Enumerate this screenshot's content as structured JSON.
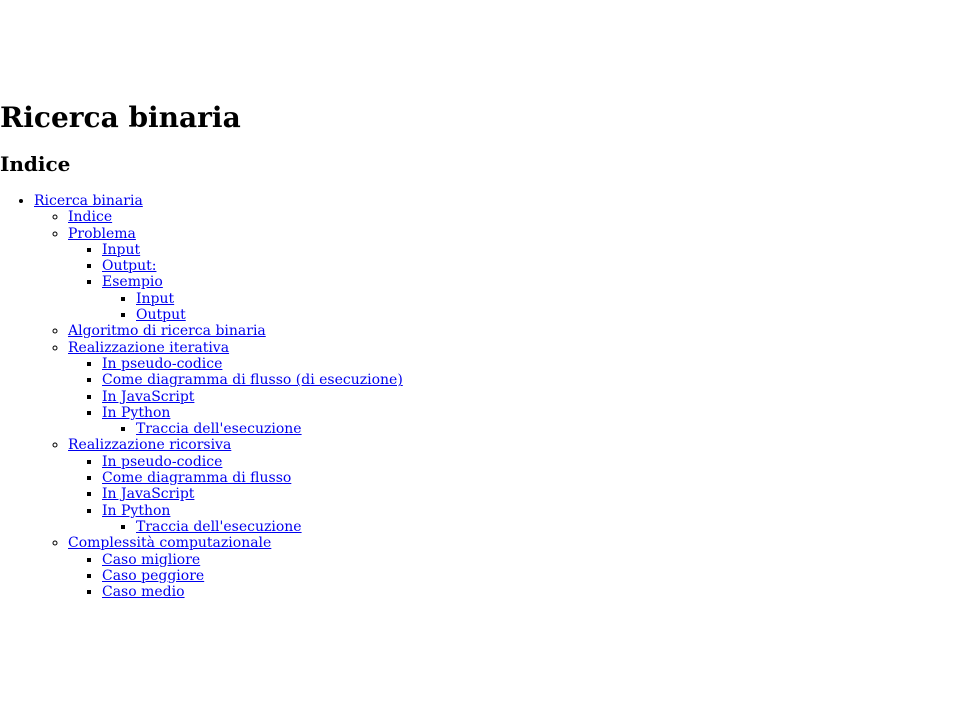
{
  "page": {
    "title": "Ricerca binaria",
    "toc_heading": "Indice"
  },
  "toc": [
    {
      "label": "Ricerca binaria",
      "children": [
        {
          "label": "Indice",
          "children": []
        },
        {
          "label": "Problema",
          "children": [
            {
              "label": "Input",
              "children": []
            },
            {
              "label": "Output:",
              "children": []
            },
            {
              "label": "Esempio",
              "children": [
                {
                  "label": "Input",
                  "children": []
                },
                {
                  "label": "Output",
                  "children": []
                }
              ]
            }
          ]
        },
        {
          "label": "Algoritmo di ricerca binaria",
          "children": []
        },
        {
          "label": "Realizzazione iterativa",
          "children": [
            {
              "label": "In pseudo-codice",
              "children": []
            },
            {
              "label": "Come diagramma di flusso (di esecuzione)",
              "children": []
            },
            {
              "label": "In JavaScript",
              "children": []
            },
            {
              "label": "In Python",
              "children": [
                {
                  "label": "Traccia dell'esecuzione",
                  "children": []
                }
              ]
            }
          ]
        },
        {
          "label": "Realizzazione ricorsiva",
          "children": [
            {
              "label": "In pseudo-codice",
              "children": []
            },
            {
              "label": "Come diagramma di flusso",
              "children": []
            },
            {
              "label": "In JavaScript",
              "children": []
            },
            {
              "label": "In Python",
              "children": [
                {
                  "label": "Traccia dell'esecuzione",
                  "children": []
                }
              ]
            }
          ]
        },
        {
          "label": "Complessità computazionale",
          "children": [
            {
              "label": "Caso migliore",
              "children": []
            },
            {
              "label": "Caso peggiore",
              "children": []
            },
            {
              "label": "Caso medio",
              "children": []
            }
          ]
        }
      ]
    }
  ],
  "colors": {
    "link": "#0000ee",
    "text": "#000000",
    "background": "#ffffff"
  }
}
